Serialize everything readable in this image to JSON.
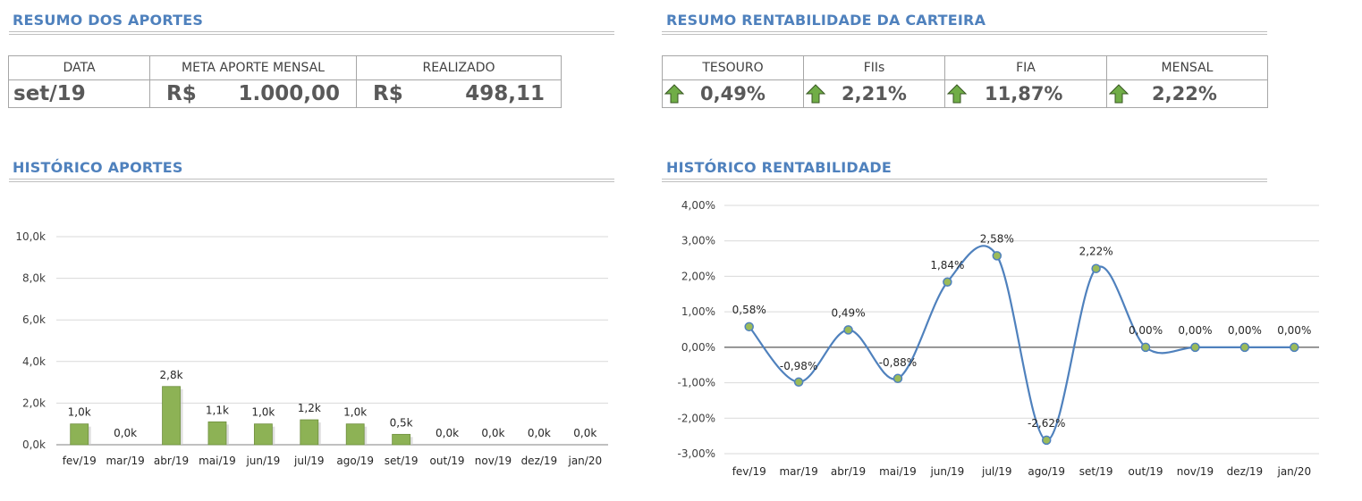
{
  "aportes_summary": {
    "title": "RESUMO DOS APORTES",
    "headers": [
      "DATA",
      "META APORTE MENSAL",
      "REALIZADO"
    ],
    "data_value": "set/19",
    "currency": "R$",
    "meta_value": "1.000,00",
    "realizado_value": "498,11"
  },
  "rentabilidade_summary": {
    "title": "RESUMO RENTABILIDADE DA CARTEIRA",
    "headers": [
      "TESOURO",
      "FIIs",
      "FIA",
      "MENSAL"
    ],
    "values": [
      "0,49%",
      "2,21%",
      "11,87%",
      "2,22%"
    ],
    "trend_icon": "green-up-arrow-icon",
    "arrow_color": "#70ad47"
  },
  "historico_aportes": {
    "title": "HISTÓRICO APORTES"
  },
  "historico_rentabilidade": {
    "title": "HISTÓRICO RENTABILIDADE"
  },
  "colors": {
    "title_blue": "#4f81bd",
    "bar_green": "#8db255",
    "line_blue": "#4f81bd",
    "marker_fill": "#9bbb59"
  },
  "chart_data": [
    {
      "type": "bar",
      "title": "HISTÓRICO APORTES",
      "categories": [
        "fev/19",
        "mar/19",
        "abr/19",
        "mai/19",
        "jun/19",
        "jul/19",
        "ago/19",
        "set/19",
        "out/19",
        "nov/19",
        "dez/19",
        "jan/20"
      ],
      "values": [
        1.0,
        0.0,
        2.8,
        1.1,
        1.0,
        1.2,
        1.0,
        0.5,
        0.0,
        0.0,
        0.0,
        0.0
      ],
      "data_labels": [
        "1,0k",
        "0,0k",
        "2,8k",
        "1,1k",
        "1,0k",
        "1,2k",
        "1,0k",
        "0,5k",
        "0,0k",
        "0,0k",
        "0,0k",
        "0,0k"
      ],
      "y_ticks": [
        "0,0k",
        "2,0k",
        "4,0k",
        "6,0k",
        "8,0k",
        "10,0k"
      ],
      "ylim": [
        0,
        10
      ],
      "grid": true
    },
    {
      "type": "line",
      "title": "HISTÓRICO RENTABILIDADE",
      "categories": [
        "fev/19",
        "mar/19",
        "abr/19",
        "mai/19",
        "jun/19",
        "jul/19",
        "ago/19",
        "set/19",
        "out/19",
        "nov/19",
        "dez/19",
        "jan/20"
      ],
      "values": [
        0.58,
        -0.98,
        0.49,
        -0.88,
        1.84,
        2.58,
        -2.62,
        2.22,
        0.0,
        0.0,
        0.0,
        0.0
      ],
      "data_labels": [
        "0,58%",
        "-0,98%",
        "0,49%",
        "-0,88%",
        "1,84%",
        "2,58%",
        "-2,62%",
        "2,22%",
        "0,00%",
        "0,00%",
        "0,00%",
        "0,00%"
      ],
      "y_ticks": [
        "-3,00%",
        "-2,00%",
        "-1,00%",
        "0,00%",
        "1,00%",
        "2,00%",
        "3,00%",
        "4,00%"
      ],
      "ylim": [
        -3,
        4
      ],
      "smooth": true,
      "grid": true
    }
  ]
}
